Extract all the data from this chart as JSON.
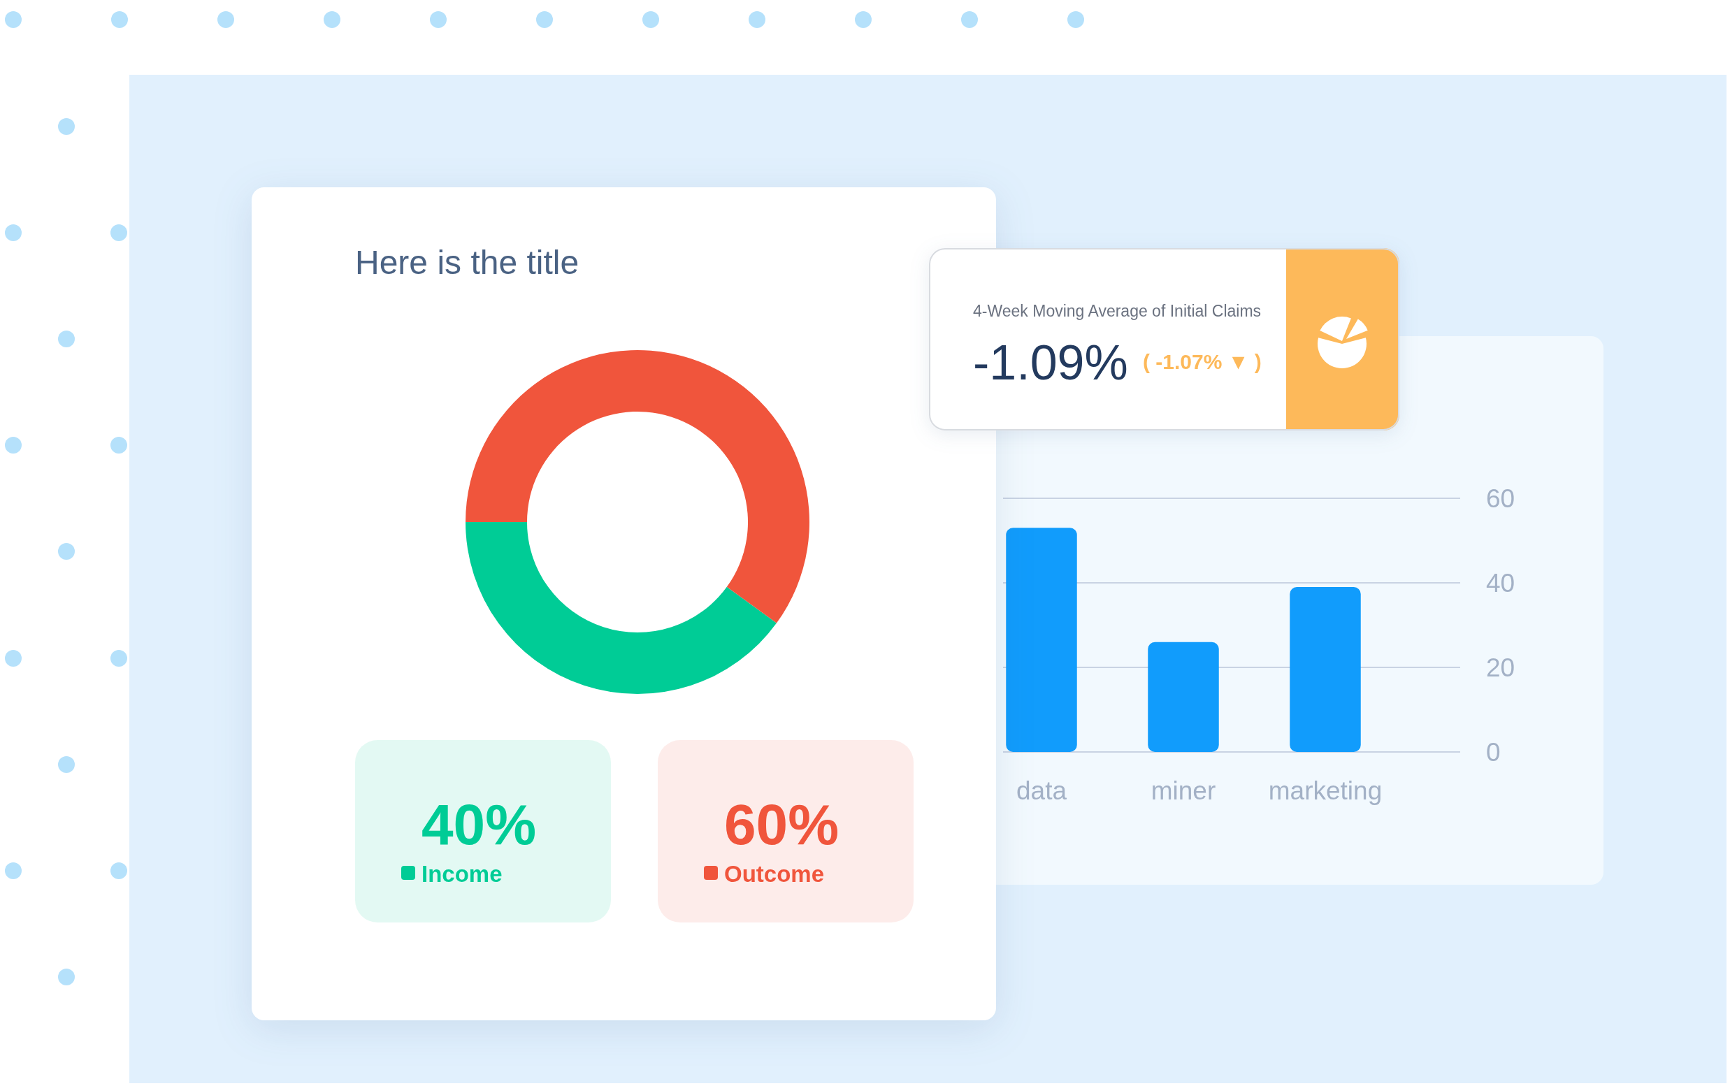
{
  "chart_data": [
    {
      "type": "donut",
      "title": "Here is the title",
      "categories": [
        "Income",
        "Outcome"
      ],
      "values": [
        40,
        60
      ],
      "colors": [
        "#00cc96",
        "#f0553c"
      ],
      "value_labels": [
        "40%",
        "60%"
      ],
      "legend": "bottom"
    },
    {
      "type": "other",
      "title": "4-Week Moving Average of Initial Claims",
      "annotations": [
        "-1.09%",
        "( -1.07% ▼ )"
      ]
    },
    {
      "type": "bar",
      "categories": [
        "data",
        "miner",
        "marketing"
      ],
      "values": [
        53,
        26,
        39
      ],
      "color": "#119cfc",
      "ylim": [
        0,
        60
      ],
      "yticks": [
        0,
        20,
        40,
        60
      ],
      "grid": "y"
    }
  ]
}
